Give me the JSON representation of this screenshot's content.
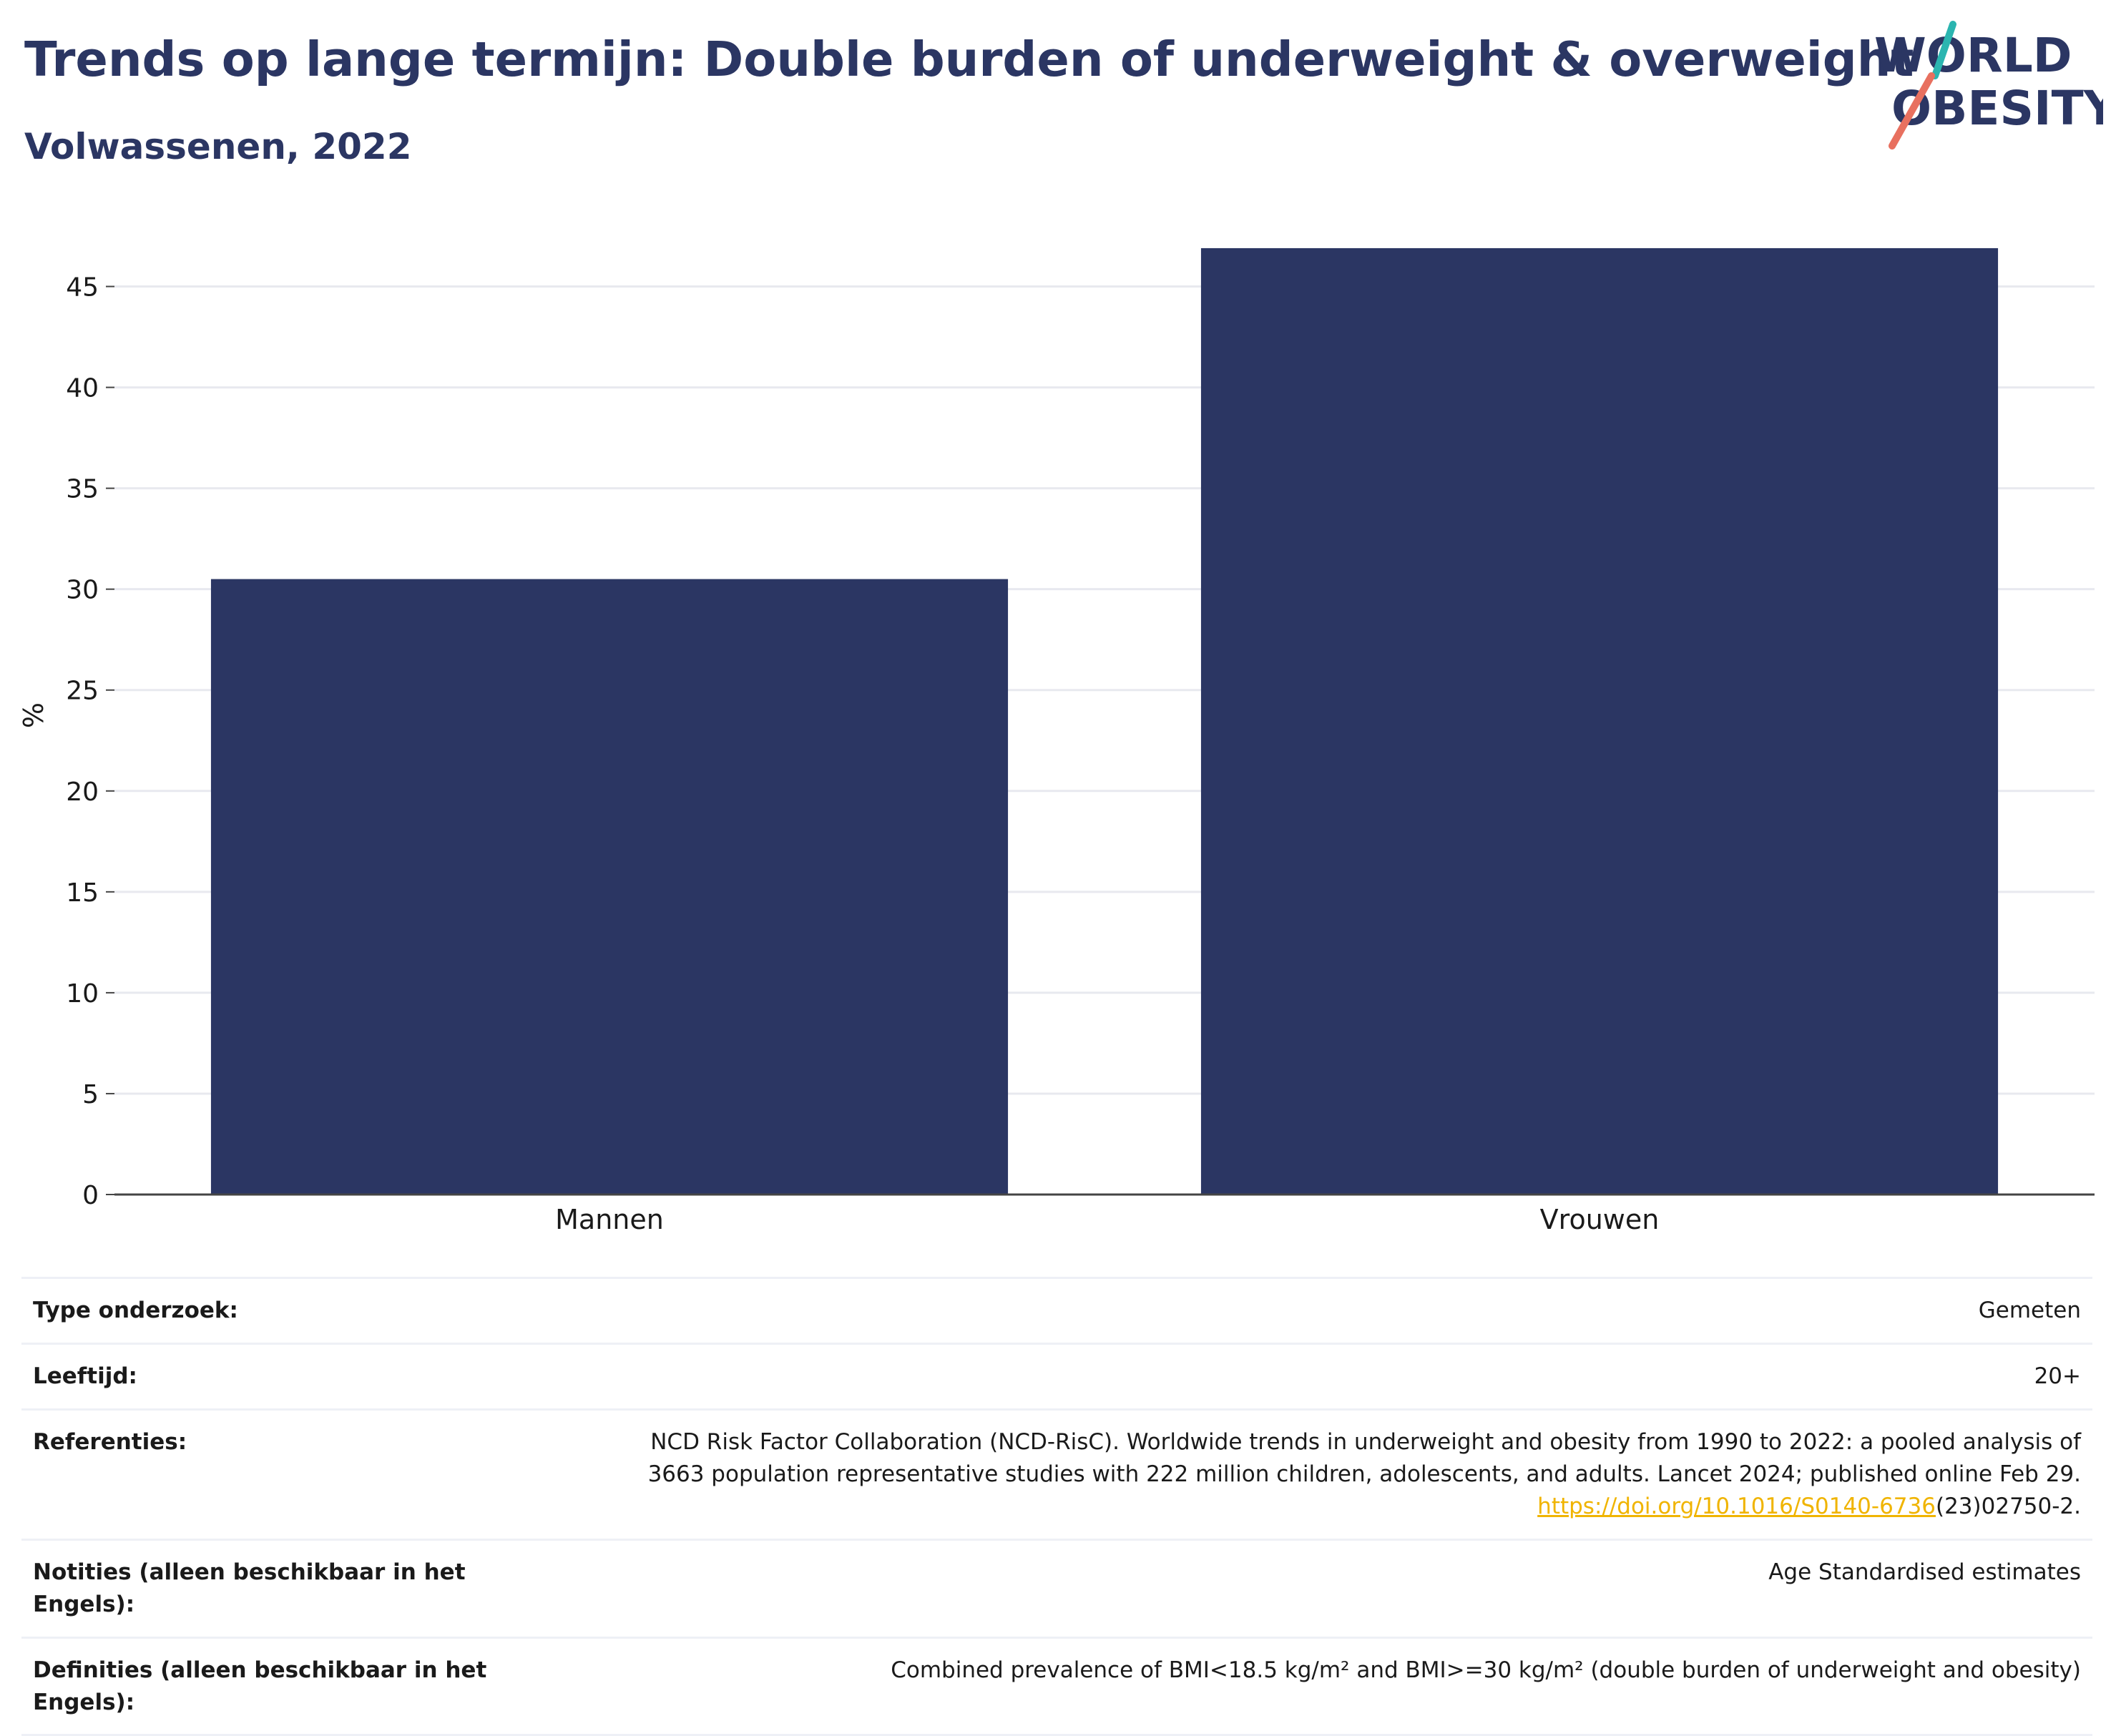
{
  "header": {
    "title": "Trends op lange termijn: Double burden of underweight & overweight",
    "subtitle": "Volwassenen, 2022"
  },
  "logo": {
    "line1": "WORLD",
    "line2": "OBESITY",
    "colors": {
      "text": "#2b3663",
      "accent_teal": "#2bb5b0",
      "accent_coral": "#e8705f"
    }
  },
  "chart_data": {
    "type": "bar",
    "categories": [
      "Mannen",
      "Vrouwen"
    ],
    "values": [
      30.5,
      46.9
    ],
    "ylabel": "%",
    "xlabel": "",
    "ylim": [
      0,
      47.5
    ],
    "yticks": [
      0,
      5,
      10,
      15,
      20,
      25,
      30,
      35,
      40,
      45
    ],
    "grid": true,
    "bar_color": "#2b3663"
  },
  "meta": {
    "rows": [
      {
        "key": "Type onderzoek:",
        "value": "Gemeten"
      },
      {
        "key": "Leeftijd:",
        "value": "20+"
      },
      {
        "key": "Referenties:",
        "value_line1": "NCD Risk Factor Collaboration (NCD-RisC). Worldwide trends in underweight and obesity from 1990 to 2022: a pooled analysis of",
        "value_line2": "3663 population representative studies with 222 million children, adolescents, and adults. Lancet 2024; published online Feb 29.",
        "link_text": "https://doi.org/10.1016/S0140-6736",
        "link_suffix": "(23)02750-2."
      },
      {
        "key": "Notities (alleen beschikbaar in het Engels):",
        "value": "Age Standardised estimates"
      },
      {
        "key": "Definities (alleen beschikbaar in het Engels):",
        "value": "Combined prevalence of BMI<18.5 kg/m² and BMI>=30 kg/m² (double burden of underweight and obesity)"
      }
    ]
  }
}
